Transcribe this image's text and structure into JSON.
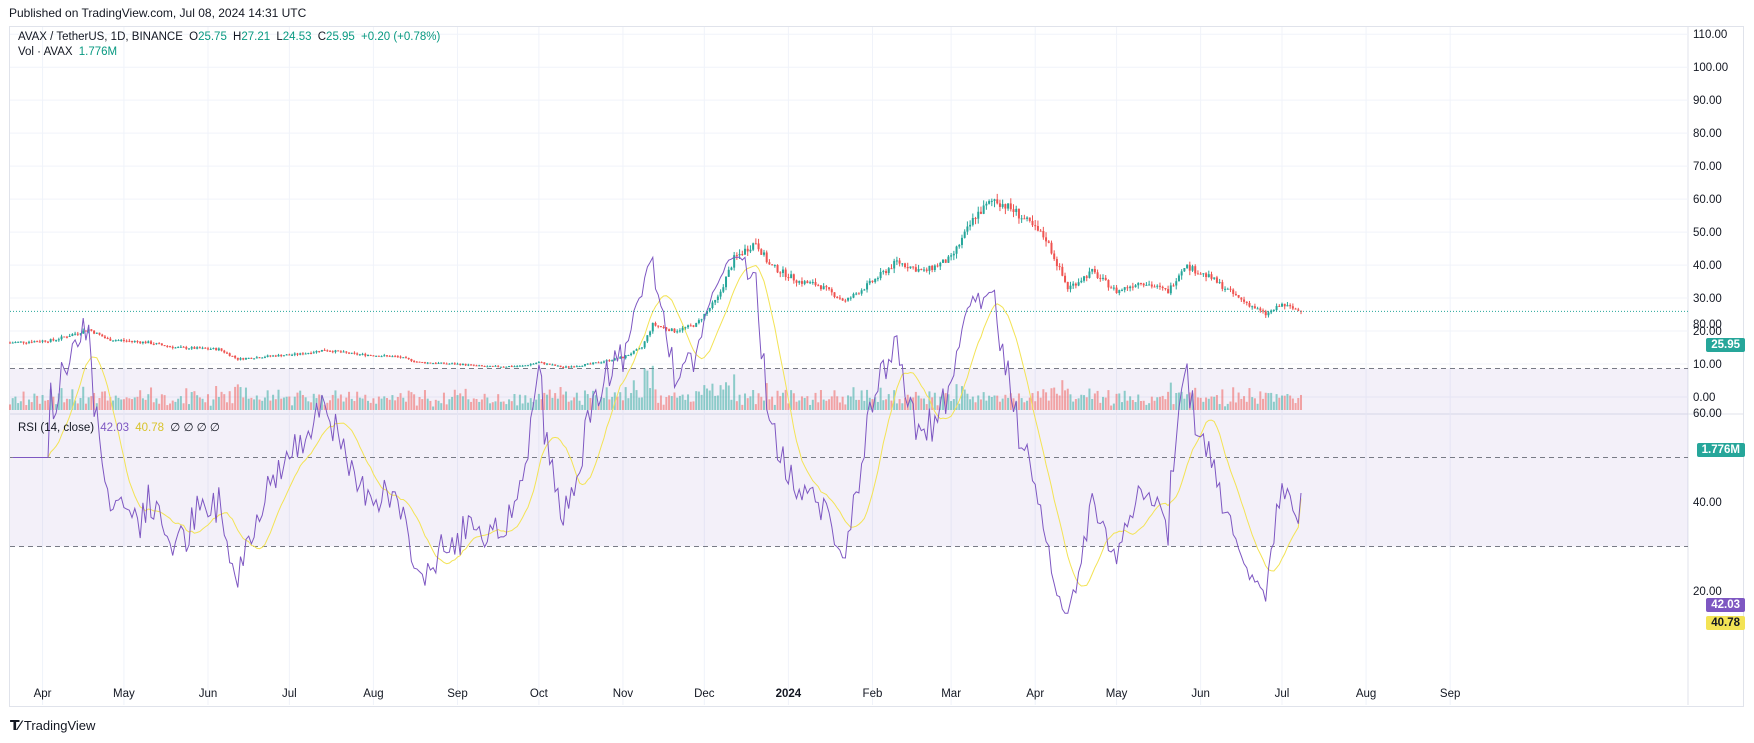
{
  "published": "Published on TradingView.com, Jul 08, 2024 14:31 UTC",
  "brand": "TradingView",
  "colors": {
    "up": "#26a69a",
    "down": "#ef5350",
    "rsi": "#7e57c2",
    "rsi_ma": "#f3e355",
    "price_line": "#26a69a"
  },
  "price_legend": {
    "symbol": "AVAX / TetherUS, 1D, BINANCE",
    "o_label": "O",
    "o": "25.75",
    "h_label": "H",
    "h": "27.21",
    "l_label": "L",
    "l": "24.53",
    "c_label": "C",
    "c": "25.95",
    "change": "+0.20 (+0.78%)"
  },
  "volume_legend": {
    "label": "Vol · AVAX",
    "value": "1.776M"
  },
  "rsi_legend": {
    "label": "RSI (14, close)",
    "rsi": "42.03",
    "ma": "40.78",
    "extra": "∅ ∅ ∅ ∅"
  },
  "last_price_tag": "25.95",
  "volume_tag": "1.776M",
  "rsi_tag": "42.03",
  "rsi_ma_tag": "40.78",
  "chart_data": {
    "type": "candlestick",
    "title": "AVAX / TetherUS, 1D, BINANCE",
    "price_axis": {
      "ticks": [
        "110.00",
        "100.00",
        "90.00",
        "80.00",
        "70.00",
        "60.00",
        "50.00",
        "40.00",
        "30.00",
        "20.00",
        "10.00",
        "0.00"
      ],
      "range": [
        0,
        110
      ]
    },
    "time_axis": {
      "ticks": [
        "Apr",
        "May",
        "Jun",
        "Jul",
        "Aug",
        "Sep",
        "Oct",
        "Nov",
        "Dec",
        "2024",
        "Feb",
        "Mar",
        "Apr",
        "May",
        "Jun",
        "Jul",
        "Aug",
        "Sep"
      ],
      "bold": "2024"
    },
    "close_path": [
      [
        "2023-03-20",
        16.5
      ],
      [
        "2023-04-05",
        17.2
      ],
      [
        "2023-04-18",
        20.5
      ],
      [
        "2023-04-25",
        17.5
      ],
      [
        "2023-05-10",
        16.5
      ],
      [
        "2023-05-20",
        15.0
      ],
      [
        "2023-06-05",
        14.5
      ],
      [
        "2023-06-12",
        11.5
      ],
      [
        "2023-06-25",
        12.5
      ],
      [
        "2023-07-05",
        13.0
      ],
      [
        "2023-07-14",
        14.3
      ],
      [
        "2023-07-25",
        13.0
      ],
      [
        "2023-08-10",
        12.2
      ],
      [
        "2023-08-18",
        10.5
      ],
      [
        "2023-09-01",
        10.0
      ],
      [
        "2023-09-12",
        9.2
      ],
      [
        "2023-09-25",
        9.4
      ],
      [
        "2023-10-01",
        10.5
      ],
      [
        "2023-10-10",
        9.0
      ],
      [
        "2023-10-20",
        10.0
      ],
      [
        "2023-11-01",
        12.0
      ],
      [
        "2023-11-08",
        15.0
      ],
      [
        "2023-11-12",
        22.0
      ],
      [
        "2023-11-20",
        20.0
      ],
      [
        "2023-11-28",
        22.0
      ],
      [
        "2023-12-06",
        30.0
      ],
      [
        "2023-12-12",
        42.0
      ],
      [
        "2023-12-20",
        47.0
      ],
      [
        "2023-12-25",
        40.0
      ],
      [
        "2024-01-05",
        35.0
      ],
      [
        "2024-01-12",
        34.0
      ],
      [
        "2024-01-22",
        29.0
      ],
      [
        "2024-02-01",
        35.0
      ],
      [
        "2024-02-10",
        41.0
      ],
      [
        "2024-02-20",
        38.0
      ],
      [
        "2024-03-01",
        42.0
      ],
      [
        "2024-03-10",
        55.0
      ],
      [
        "2024-03-17",
        60.0
      ],
      [
        "2024-03-25",
        56.0
      ],
      [
        "2024-04-05",
        48.0
      ],
      [
        "2024-04-13",
        33.0
      ],
      [
        "2024-04-22",
        38.0
      ],
      [
        "2024-05-01",
        32.0
      ],
      [
        "2024-05-10",
        35.0
      ],
      [
        "2024-05-20",
        32.0
      ],
      [
        "2024-05-26",
        40.0
      ],
      [
        "2024-06-05",
        36.0
      ],
      [
        "2024-06-15",
        30.0
      ],
      [
        "2024-06-25",
        25.0
      ],
      [
        "2024-07-01",
        28.0
      ],
      [
        "2024-07-08",
        25.95
      ]
    ],
    "rsi": {
      "levels": {
        "upper": 70,
        "middle": 50,
        "lower": 30
      },
      "axis_ticks": [
        "80.00",
        "60.00",
        "40.00",
        "20.00"
      ],
      "last": 42.03,
      "ma_last": 40.78
    },
    "volume": {
      "last": "1.776M"
    }
  }
}
